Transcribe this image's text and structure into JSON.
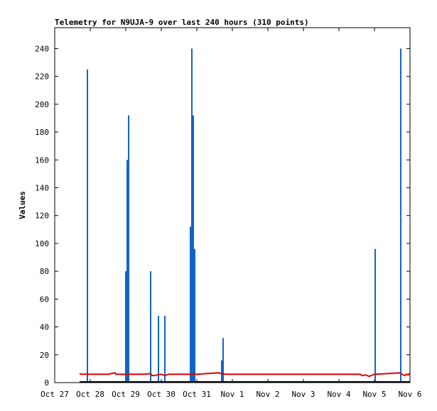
{
  "chart_data": {
    "type": "bar",
    "title": "Telemetry for N9UJA-9 over last 240 hours (310 points)",
    "xlabel": "",
    "ylabel": "Values",
    "xlim": [
      0,
      10
    ],
    "ylim": [
      0,
      255
    ],
    "x_tick_labels": [
      "Oct 27",
      "Oct 28",
      "Oct 29",
      "Oct 30",
      "Oct 31",
      "Nov 1",
      "Nov 2",
      "Nov 3",
      "Nov 4",
      "Nov 5",
      "Nov 6"
    ],
    "y_ticks": [
      0,
      20,
      40,
      60,
      80,
      100,
      120,
      140,
      160,
      180,
      200,
      220,
      240
    ],
    "grid": false,
    "colors": {
      "spikes": "#1064c8",
      "baseline": "#e00000",
      "zero_line": "#000000"
    },
    "series": [
      {
        "values": [
          {
            "x": 0.92,
            "y": 225
          },
          {
            "x": 2.0,
            "y": 80
          },
          {
            "x": 2.04,
            "y": 160
          },
          {
            "x": 2.08,
            "y": 192
          },
          {
            "x": 2.7,
            "y": 80
          },
          {
            "x": 2.92,
            "y": 48
          },
          {
            "x": 3.1,
            "y": 48
          },
          {
            "x": 3.82,
            "y": 112
          },
          {
            "x": 3.86,
            "y": 240
          },
          {
            "x": 3.9,
            "y": 192
          },
          {
            "x": 3.94,
            "y": 96
          },
          {
            "x": 4.7,
            "y": 16
          },
          {
            "x": 4.74,
            "y": 32
          },
          {
            "x": 9.02,
            "y": 96
          },
          {
            "x": 9.74,
            "y": 240
          }
        ]
      },
      {
        "values": [
          {
            "x": 0.7,
            "y": 6.5
          },
          {
            "x": 0.75,
            "y": 6
          },
          {
            "x": 1.0,
            "y": 6
          },
          {
            "x": 1.5,
            "y": 6
          },
          {
            "x": 1.7,
            "y": 7
          },
          {
            "x": 1.72,
            "y": 6
          },
          {
            "x": 2.0,
            "y": 6
          },
          {
            "x": 2.5,
            "y": 6
          },
          {
            "x": 2.7,
            "y": 6.5
          },
          {
            "x": 2.75,
            "y": 5
          },
          {
            "x": 2.9,
            "y": 5.5
          },
          {
            "x": 3.0,
            "y": 6
          },
          {
            "x": 3.1,
            "y": 5
          },
          {
            "x": 3.2,
            "y": 6
          },
          {
            "x": 3.5,
            "y": 6
          },
          {
            "x": 3.8,
            "y": 6
          },
          {
            "x": 4.0,
            "y": 6
          },
          {
            "x": 4.3,
            "y": 6.5
          },
          {
            "x": 4.6,
            "y": 7
          },
          {
            "x": 4.8,
            "y": 6
          },
          {
            "x": 6.0,
            "y": 6
          },
          {
            "x": 7.0,
            "y": 6
          },
          {
            "x": 8.0,
            "y": 6
          },
          {
            "x": 8.6,
            "y": 6
          },
          {
            "x": 8.65,
            "y": 5
          },
          {
            "x": 8.75,
            "y": 5.5
          },
          {
            "x": 8.85,
            "y": 4.5
          },
          {
            "x": 9.0,
            "y": 6
          },
          {
            "x": 9.4,
            "y": 6.5
          },
          {
            "x": 9.7,
            "y": 7
          },
          {
            "x": 9.85,
            "y": 5
          },
          {
            "x": 9.9,
            "y": 6
          },
          {
            "x": 9.95,
            "y": 5.5
          },
          {
            "x": 10.0,
            "y": 7
          }
        ]
      }
    ]
  }
}
